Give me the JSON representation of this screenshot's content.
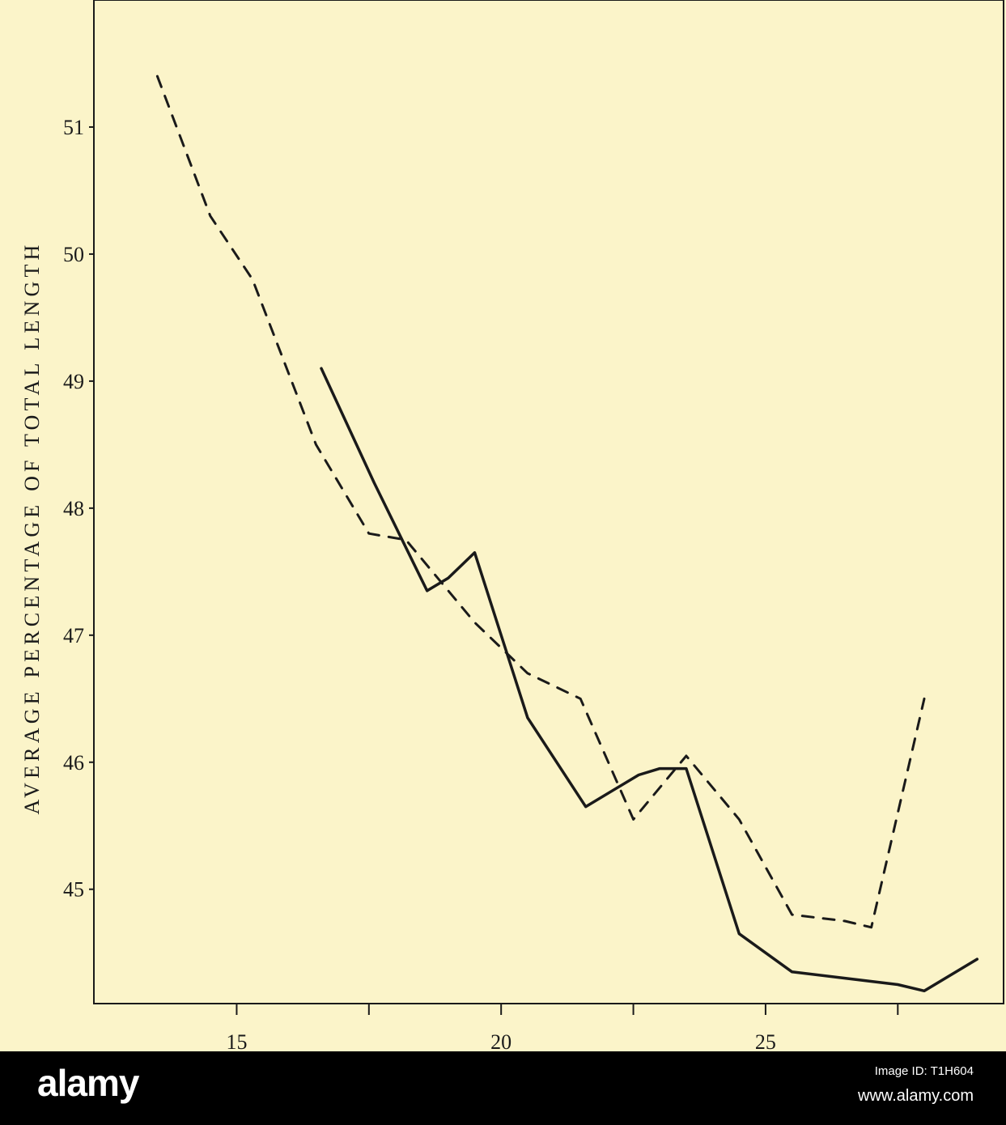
{
  "chart_data": {
    "type": "line",
    "title": "",
    "xlabel": "",
    "ylabel": "AVERAGE PERCENTAGE OF TOTAL LENGTH",
    "xlim": [
      12.3,
      29.5
    ],
    "ylim": [
      44.1,
      52.0
    ],
    "x_ticks": [
      15,
      20,
      25
    ],
    "x_minor_ticks": [
      17.5,
      22.5,
      27.5
    ],
    "y_ticks": [
      45,
      46,
      47,
      48,
      49,
      50,
      51
    ],
    "grid": false,
    "series": [
      {
        "style": "solid",
        "color": "#1a1a1a",
        "points": [
          [
            16.6,
            49.1
          ],
          [
            17.6,
            48.2
          ],
          [
            18.6,
            47.35
          ],
          [
            19.0,
            47.45
          ],
          [
            19.5,
            47.65
          ],
          [
            20.5,
            46.35
          ],
          [
            21.6,
            45.65
          ],
          [
            22.6,
            45.9
          ],
          [
            23.0,
            45.95
          ],
          [
            23.5,
            45.95
          ],
          [
            24.5,
            44.65
          ],
          [
            25.5,
            44.35
          ],
          [
            26.5,
            44.3
          ],
          [
            27.5,
            44.25
          ],
          [
            28.0,
            44.2
          ],
          [
            29.0,
            44.45
          ]
        ]
      },
      {
        "style": "dashed",
        "color": "#1a1a1a",
        "points": [
          [
            13.5,
            51.4
          ],
          [
            14.5,
            50.3
          ],
          [
            15.3,
            49.8
          ],
          [
            16.5,
            48.5
          ],
          [
            17.5,
            47.8
          ],
          [
            18.2,
            47.75
          ],
          [
            19.5,
            47.1
          ],
          [
            20.5,
            46.7
          ],
          [
            21.5,
            46.5
          ],
          [
            22.5,
            45.55
          ],
          [
            23.5,
            46.05
          ],
          [
            24.5,
            45.55
          ],
          [
            25.5,
            44.8
          ],
          [
            26.5,
            44.75
          ],
          [
            27.0,
            44.7
          ],
          [
            28.0,
            46.5
          ]
        ]
      }
    ]
  },
  "watermark": {
    "brand": "alamy",
    "image_id": "Image ID: T1H604",
    "site": "www.alamy.com"
  }
}
